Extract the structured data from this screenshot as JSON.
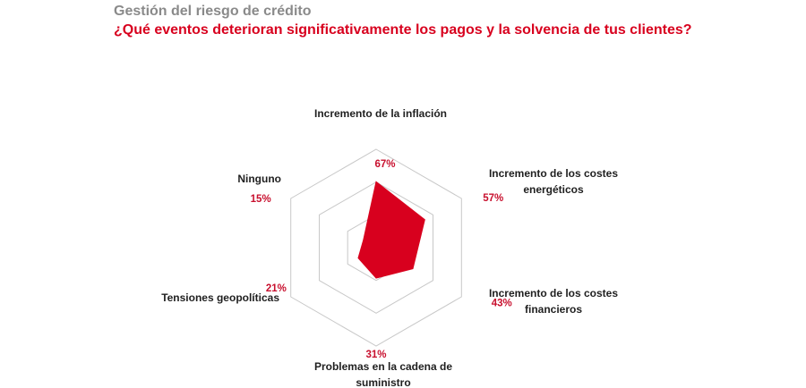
{
  "header": {
    "title": "Gestión del riesgo de crédito",
    "question": "¿Qué eventos deterioran significativamente los pagos y la solvencia de tus clientes?"
  },
  "chart_data": {
    "type": "radar",
    "max": 100,
    "rings": 3,
    "grid": true,
    "legend": "none",
    "fill_color": "#d8001e",
    "grid_color": "#c8c8c8",
    "axes": [
      {
        "lines": [
          "Incremento de la inflación"
        ],
        "value": 67,
        "value_label": "67%"
      },
      {
        "lines": [
          "Incremento de los costes",
          "energéticos"
        ],
        "value": 57,
        "value_label": "57%"
      },
      {
        "lines": [
          "Incremento de los costes",
          "financieros"
        ],
        "value": 43,
        "value_label": "43%"
      },
      {
        "lines": [
          "Problemas en la cadena de",
          "suministro"
        ],
        "value": 31,
        "value_label": "31%"
      },
      {
        "lines": [
          "Tensiones geopolíticas"
        ],
        "value": 21,
        "value_label": "21%"
      },
      {
        "lines": [
          "Ninguno"
        ],
        "value": 15,
        "value_label": "15%"
      }
    ]
  }
}
